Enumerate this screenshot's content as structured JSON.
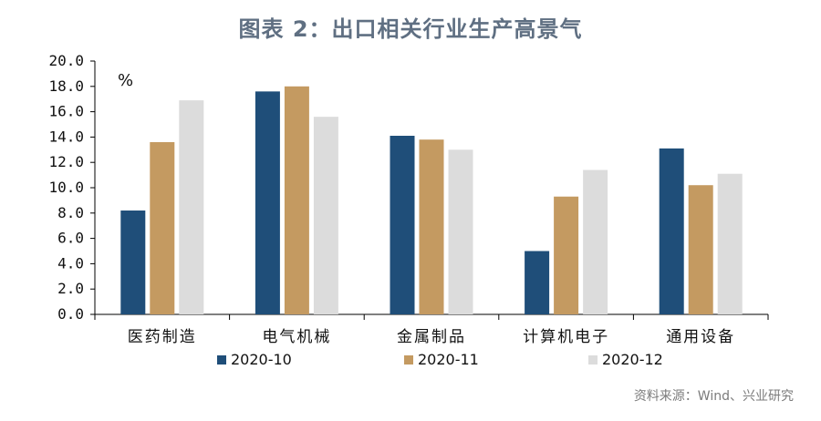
{
  "chart_data": {
    "type": "bar",
    "title": "图表 2：出口相关行业生产高景气",
    "unit_label": "%",
    "categories": [
      "医药制造",
      "电气机械",
      "金属制品",
      "计算机电子",
      "通用设备"
    ],
    "series": [
      {
        "name": "2020-10",
        "color": "#1f4e79",
        "values": [
          8.2,
          17.6,
          14.1,
          5.0,
          13.1
        ]
      },
      {
        "name": "2020-11",
        "color": "#c49a61",
        "values": [
          13.6,
          18.0,
          13.8,
          9.3,
          10.2
        ]
      },
      {
        "name": "2020-12",
        "color": "#dcdcdc",
        "values": [
          16.9,
          15.6,
          13.0,
          11.4,
          11.1
        ]
      }
    ],
    "ylim": [
      0,
      20
    ],
    "yticks": [
      "0.0",
      "2.0",
      "4.0",
      "6.0",
      "8.0",
      "10.0",
      "12.0",
      "14.0",
      "16.0",
      "18.0",
      "20.0"
    ],
    "grid": false,
    "legend_position": "bottom",
    "source": "资料来源：Wind、兴业研究"
  }
}
